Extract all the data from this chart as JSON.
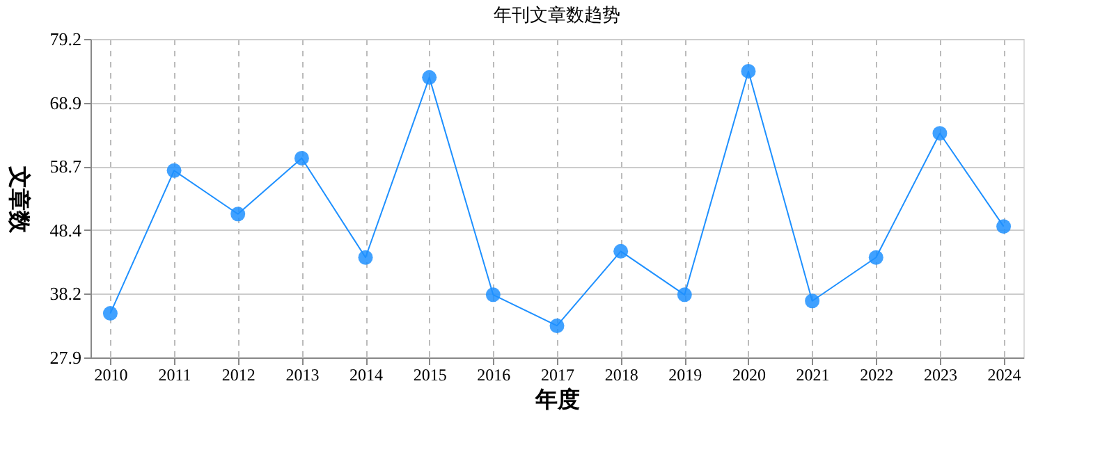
{
  "chart_data": {
    "type": "line",
    "title": "年刊文章数趋势",
    "xlabel": "年度",
    "ylabel": "文章数",
    "categories": [
      "2010",
      "2011",
      "2012",
      "2013",
      "2014",
      "2015",
      "2016",
      "2017",
      "2018",
      "2019",
      "2020",
      "2021",
      "2022",
      "2023",
      "2024"
    ],
    "series": [
      {
        "color": "#1e90ff",
        "values": [
          35,
          58,
          51,
          60,
          44,
          73,
          38,
          33,
          45,
          38,
          74,
          37,
          44,
          64,
          49
        ]
      }
    ],
    "ylim": [
      27.9,
      79.2
    ],
    "yticks": [
      27.9,
      38.2,
      48.4,
      58.7,
      68.9,
      79.2
    ],
    "grid": true,
    "legend": false,
    "marker": "circle",
    "line_style": "solid"
  }
}
